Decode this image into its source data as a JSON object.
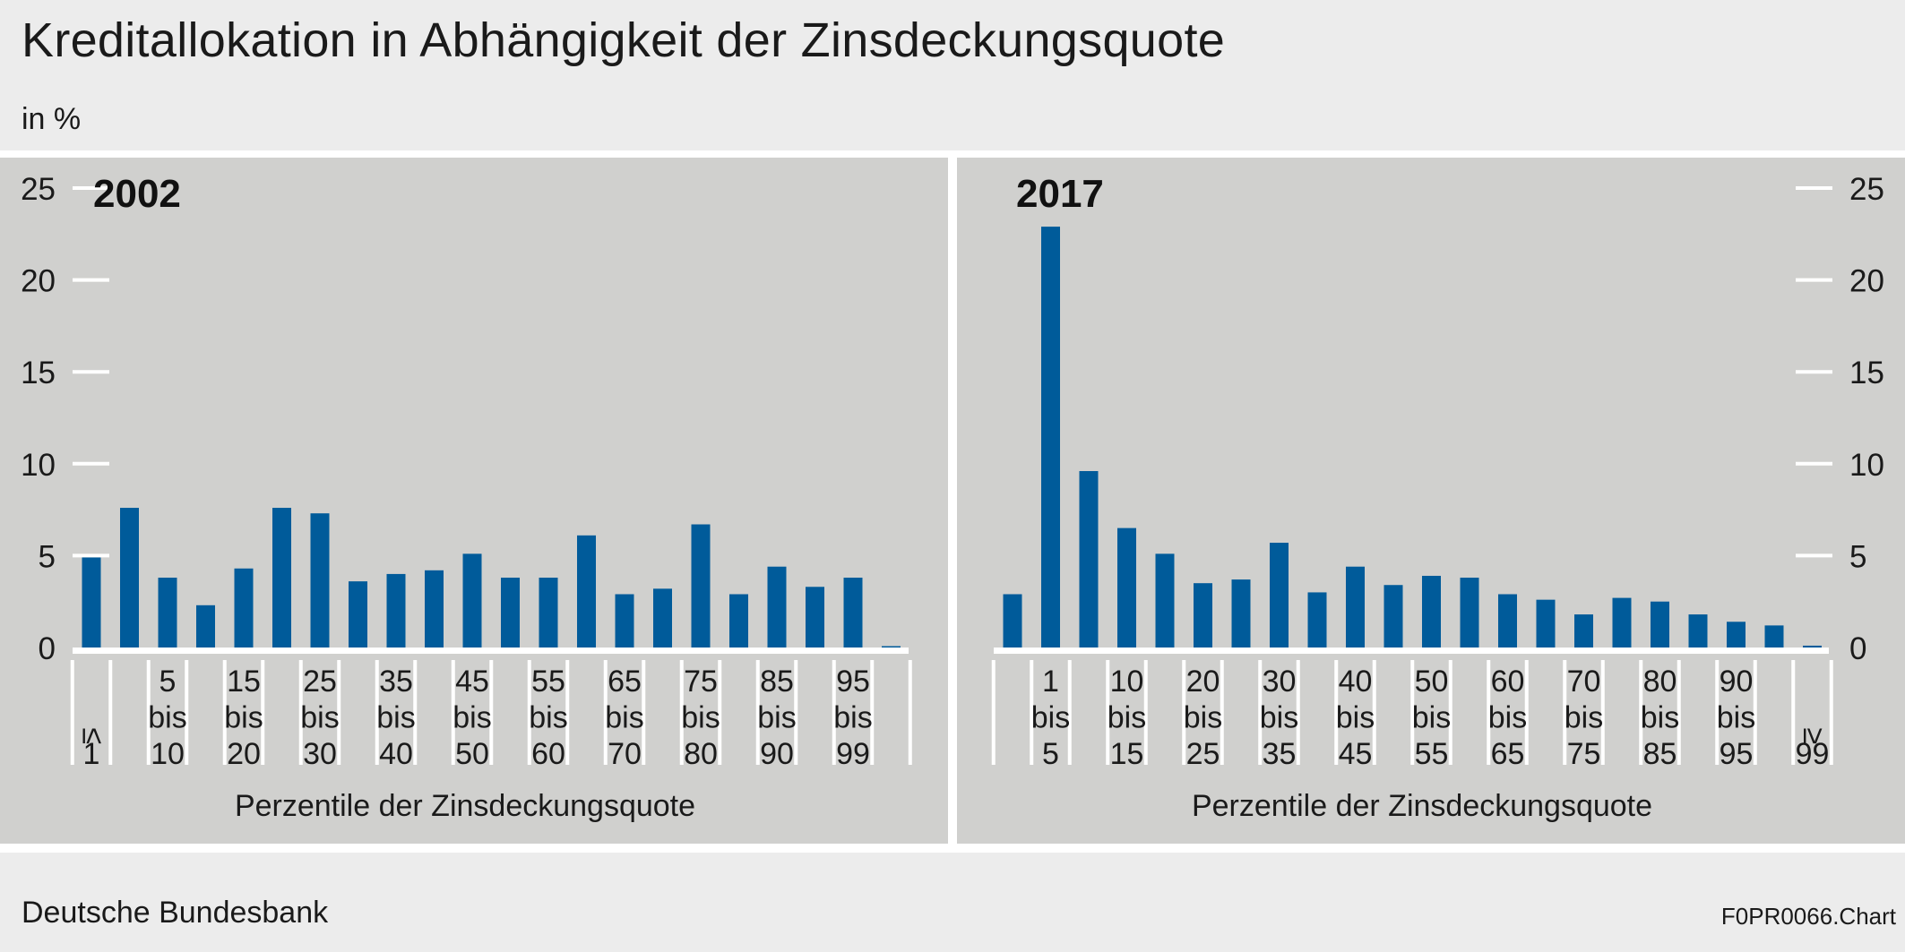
{
  "title": "Kreditallokation in Abhängigkeit der Zinsdeckungsquote",
  "subtitle": "in %",
  "source": "Deutsche Bundesbank",
  "chart_code": "F0PR0066.Chart",
  "colors": {
    "bar": "#005b9a",
    "panel": "#d0d0ce",
    "background": "#ececec"
  },
  "chart_data": [
    {
      "type": "bar",
      "title": "2002",
      "xlabel": "Perzentile der Zinsdeckungsquote",
      "ylabel": "in %",
      "ylim": [
        0,
        25
      ],
      "yticks": [
        0,
        5,
        10,
        15,
        20,
        25
      ],
      "yaxis_side": "left",
      "categories": [
        "≤ 1",
        "1 bis 5",
        "5 bis 10",
        "10 bis 15",
        "15 bis 20",
        "20 bis 25",
        "25 bis 30",
        "30 bis 35",
        "35 bis 40",
        "40 bis 45",
        "45 bis 50",
        "50 bis 55",
        "55 bis 60",
        "60 bis 65",
        "65 bis 70",
        "70 bis 75",
        "75 bis 80",
        "80 bis 85",
        "85 bis 90",
        "90 bis 95",
        "95 bis 99",
        "≥ 99"
      ],
      "labeled_category_indices": [
        0,
        2,
        4,
        6,
        8,
        10,
        12,
        14,
        16,
        18,
        20
      ],
      "values": [
        4.9,
        7.6,
        3.8,
        2.3,
        4.3,
        7.6,
        7.3,
        3.6,
        4.0,
        4.2,
        5.1,
        3.8,
        3.8,
        6.1,
        2.9,
        3.2,
        6.7,
        2.9,
        4.4,
        3.3,
        3.8,
        0.05
      ]
    },
    {
      "type": "bar",
      "title": "2017",
      "xlabel": "Perzentile der Zinsdeckungsquote",
      "ylabel": "in %",
      "ylim": [
        0,
        25
      ],
      "yticks": [
        0,
        5,
        10,
        15,
        20,
        25
      ],
      "yaxis_side": "right",
      "categories": [
        "≤ 1",
        "1 bis 5",
        "5 bis 10",
        "10 bis 15",
        "15 bis 20",
        "20 bis 25",
        "25 bis 30",
        "30 bis 35",
        "35 bis 40",
        "40 bis 45",
        "45 bis 50",
        "50 bis 55",
        "55 bis 60",
        "60 bis 65",
        "65 bis 70",
        "70 bis 75",
        "75 bis 80",
        "80 bis 85",
        "85 bis 90",
        "90 bis 95",
        "95 bis 99",
        "≥ 99"
      ],
      "labeled_category_indices": [
        1,
        3,
        5,
        7,
        9,
        11,
        13,
        15,
        17,
        19,
        21
      ],
      "values": [
        2.9,
        22.9,
        9.6,
        6.5,
        5.1,
        3.5,
        3.7,
        5.7,
        3.0,
        4.4,
        3.4,
        3.9,
        3.8,
        2.9,
        2.6,
        1.8,
        2.7,
        2.5,
        1.8,
        1.4,
        1.2,
        0.1
      ]
    }
  ]
}
